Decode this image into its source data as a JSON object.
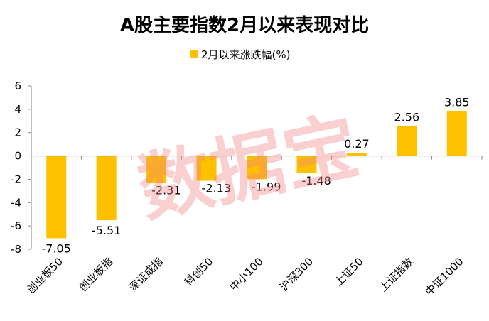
{
  "chart_data": {
    "type": "bar",
    "title": "A股主要指数2月以来表现对比",
    "series": [
      {
        "name": "2月以来涨跌幅(%)",
        "color": "#FFC000",
        "values": [
          -7.05,
          -5.51,
          -2.31,
          -2.13,
          -1.99,
          -1.48,
          0.27,
          2.56,
          3.85
        ]
      }
    ],
    "categories": [
      "创业板50",
      "创业板指",
      "深证成指",
      "科创50",
      "中小100",
      "沪深300",
      "上证50",
      "上证指数",
      "中证1000"
    ],
    "data_labels": [
      "-7.05",
      "-5.51",
      "-2.31",
      "-2.13",
      "-1.99",
      "-1.48",
      "0.27",
      "2.56",
      "3.85"
    ],
    "ylim": [
      -8,
      6
    ],
    "yticks": [
      6,
      4,
      2,
      0,
      -2,
      -4,
      -6,
      -8
    ],
    "legend_position": "top",
    "grid": false
  },
  "watermark": "数据宝"
}
